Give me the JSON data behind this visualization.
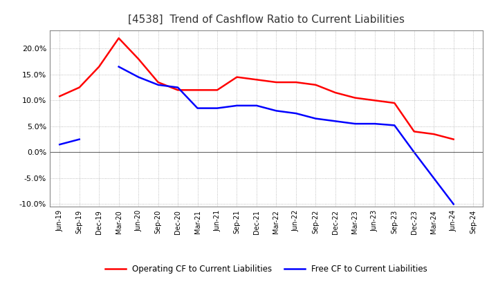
{
  "title": "[4538]  Trend of Cashflow Ratio to Current Liabilities",
  "title_fontsize": 11,
  "background_color": "#ffffff",
  "grid_color": "#aaaaaa",
  "x_labels": [
    "Jun-19",
    "Sep-19",
    "Dec-19",
    "Mar-20",
    "Jun-20",
    "Sep-20",
    "Dec-20",
    "Mar-21",
    "Jun-21",
    "Sep-21",
    "Dec-21",
    "Mar-22",
    "Jun-22",
    "Sep-22",
    "Dec-22",
    "Mar-23",
    "Jun-23",
    "Sep-23",
    "Dec-23",
    "Mar-24",
    "Jun-24",
    "Sep-24"
  ],
  "operating_cf": [
    10.8,
    12.5,
    16.5,
    22.0,
    18.0,
    13.5,
    12.0,
    12.0,
    12.0,
    14.5,
    14.0,
    13.5,
    13.5,
    13.0,
    11.5,
    10.5,
    10.0,
    9.5,
    4.0,
    3.5,
    2.5,
    null
  ],
  "free_cf": [
    1.5,
    2.5,
    null,
    16.5,
    14.5,
    13.0,
    12.5,
    8.5,
    8.5,
    9.0,
    9.0,
    8.0,
    7.5,
    6.5,
    6.0,
    5.5,
    5.5,
    5.2,
    0.0,
    -5.0,
    -10.0,
    null
  ],
  "operating_color": "#ff0000",
  "free_color": "#0000ff",
  "ylim": [
    -10.5,
    23.5
  ],
  "yticks": [
    -10.0,
    -5.0,
    0.0,
    5.0,
    10.0,
    15.0,
    20.0
  ],
  "legend_labels": [
    "Operating CF to Current Liabilities",
    "Free CF to Current Liabilities"
  ]
}
